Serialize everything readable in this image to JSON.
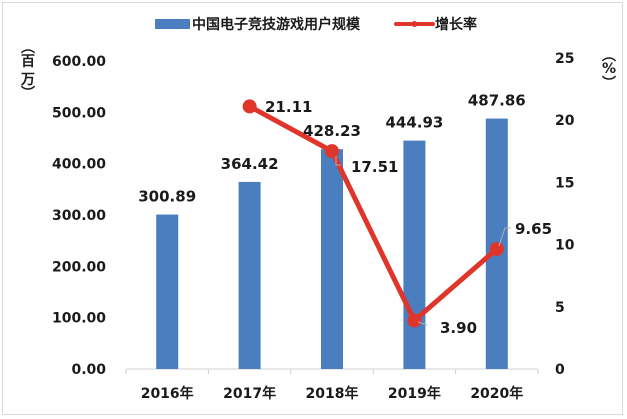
{
  "chart_data": {
    "type": "bar+line",
    "title": "",
    "categories": [
      "2016年",
      "2017年",
      "2018年",
      "2019年",
      "2020年"
    ],
    "series": [
      {
        "name": "中国电子竞技游戏用户规模",
        "type": "bar",
        "axis": "left",
        "color": "#4a7ebf",
        "values": [
          300.89,
          364.42,
          428.23,
          444.93,
          487.86
        ],
        "labels": [
          "300.89",
          "364.42",
          "428.23",
          "444.93",
          "487.86"
        ]
      },
      {
        "name": "增长率",
        "type": "line",
        "axis": "right",
        "color": "#e0352b",
        "values": [
          null,
          21.11,
          17.51,
          3.9,
          9.65
        ],
        "labels": [
          "",
          "21.11",
          "17.51",
          "3.90",
          "9.65"
        ]
      }
    ],
    "left_axis": {
      "label": "（百万）",
      "label_chars": [
        "︵",
        "百",
        "万",
        "︶"
      ],
      "ylim": [
        0,
        600
      ],
      "ticks": [
        "0.00",
        "100.00",
        "200.00",
        "300.00",
        "400.00",
        "500.00",
        "600.00"
      ]
    },
    "right_axis": {
      "label": "（%）",
      "label_chars": [
        "︵",
        "%",
        "︶"
      ],
      "ylim": [
        0,
        25
      ],
      "ticks": [
        "0",
        "5",
        "10",
        "15",
        "20",
        "25"
      ]
    },
    "legend": {
      "position": "top",
      "items": [
        {
          "label": "中国电子竞技游戏用户规模",
          "swatch": "bar",
          "color": "#4a7ebf"
        },
        {
          "label": "增长率",
          "swatch": "line-marker",
          "color": "#e0352b"
        }
      ]
    },
    "grid": false
  }
}
